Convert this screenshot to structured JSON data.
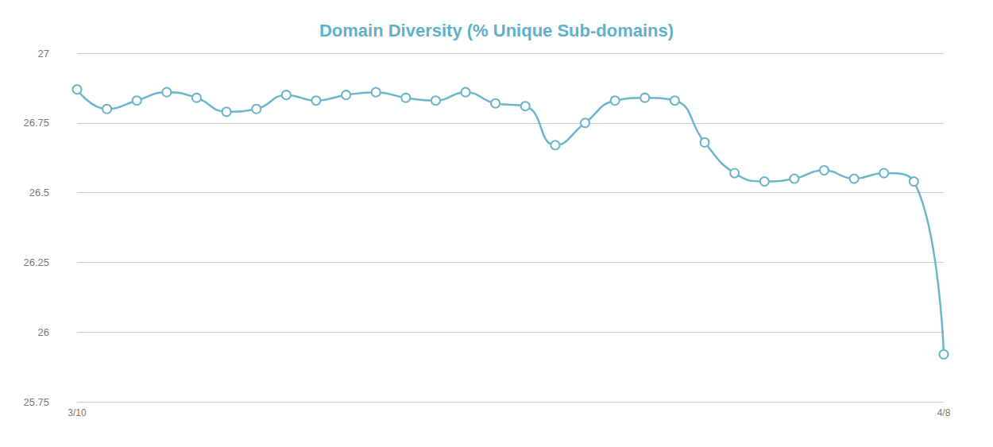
{
  "chart_data": {
    "type": "line",
    "title": "Domain Diversity (% Unique Sub-domains)",
    "categories": [
      "3/10",
      null,
      null,
      null,
      null,
      null,
      null,
      null,
      null,
      null,
      null,
      null,
      null,
      null,
      null,
      null,
      null,
      null,
      null,
      null,
      null,
      null,
      null,
      null,
      null,
      null,
      null,
      null,
      null,
      "4/8"
    ],
    "values": [
      26.87,
      26.8,
      26.83,
      26.86,
      26.84,
      26.79,
      26.8,
      26.85,
      26.83,
      26.85,
      26.86,
      26.84,
      26.83,
      26.86,
      26.82,
      26.81,
      26.67,
      26.75,
      26.83,
      26.84,
      26.83,
      26.68,
      26.57,
      26.54,
      26.55,
      26.58,
      26.55,
      26.57,
      26.54,
      25.92
    ],
    "color": "#6db5cc",
    "ylim": [
      25.75,
      27
    ],
    "yticks": [
      25.75,
      26,
      26.25,
      26.5,
      26.75,
      27
    ],
    "grid": true,
    "marker": "circle",
    "line_style": "solid"
  }
}
